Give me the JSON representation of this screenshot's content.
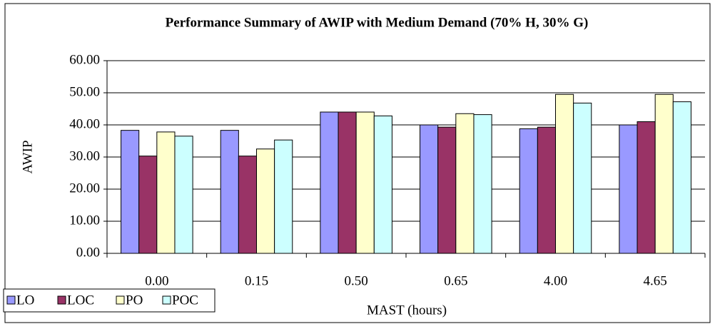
{
  "chart_data": {
    "type": "bar",
    "title": "Performance Summary of AWIP with Medium Demand (70% H, 30% G)",
    "x_label": "MAST (hours)",
    "y_label": "AWIP",
    "categories": [
      "0.00",
      "0.15",
      "0.50",
      "0.65",
      "4.00",
      "4.65"
    ],
    "series": [
      {
        "name": "LO",
        "color": "#9999ff",
        "values": [
          38.3,
          38.3,
          44.0,
          40.0,
          38.8,
          40.0
        ]
      },
      {
        "name": "LOC",
        "color": "#993366",
        "values": [
          30.3,
          30.3,
          44.0,
          39.3,
          39.3,
          41.0
        ]
      },
      {
        "name": "PO",
        "color": "#ffffcc",
        "values": [
          37.8,
          32.5,
          44.0,
          43.5,
          49.5,
          49.5
        ]
      },
      {
        "name": "POC",
        "color": "#ccffff",
        "values": [
          36.5,
          35.3,
          42.8,
          43.2,
          46.8,
          47.2
        ]
      }
    ],
    "ylim": [
      0,
      60
    ],
    "yticks": [
      {
        "value": 0,
        "label": "0.00"
      },
      {
        "value": 10,
        "label": "10.00"
      },
      {
        "value": 20,
        "label": "20.00"
      },
      {
        "value": 30,
        "label": "30.00"
      },
      {
        "value": 40,
        "label": "40.00"
      },
      {
        "value": 50,
        "label": "50.00"
      },
      {
        "value": 60,
        "label": "60.00"
      }
    ],
    "grid": true,
    "legend": "bottom-left"
  }
}
